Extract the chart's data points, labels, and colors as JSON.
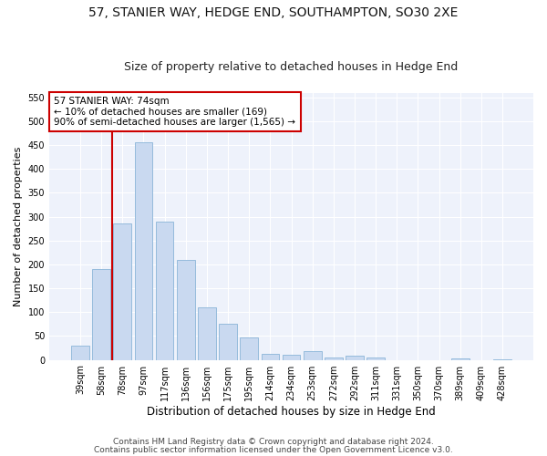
{
  "title": "57, STANIER WAY, HEDGE END, SOUTHAMPTON, SO30 2XE",
  "subtitle": "Size of property relative to detached houses in Hedge End",
  "xlabel": "Distribution of detached houses by size in Hedge End",
  "ylabel": "Number of detached properties",
  "categories": [
    "39sqm",
    "58sqm",
    "78sqm",
    "97sqm",
    "117sqm",
    "136sqm",
    "156sqm",
    "175sqm",
    "195sqm",
    "214sqm",
    "234sqm",
    "253sqm",
    "272sqm",
    "292sqm",
    "311sqm",
    "331sqm",
    "350sqm",
    "370sqm",
    "389sqm",
    "409sqm",
    "428sqm"
  ],
  "values": [
    30,
    190,
    285,
    455,
    290,
    210,
    110,
    75,
    47,
    12,
    10,
    18,
    5,
    8,
    5,
    0,
    0,
    0,
    3,
    0,
    2
  ],
  "bar_color": "#c9d9f0",
  "bar_edge_color": "#8ab4d8",
  "vline_color": "#cc0000",
  "annotation_text": "57 STANIER WAY: 74sqm\n← 10% of detached houses are smaller (169)\n90% of semi-detached houses are larger (1,565) →",
  "annotation_box_color": "white",
  "annotation_box_edge_color": "#cc0000",
  "ylim": [
    0,
    560
  ],
  "yticks": [
    0,
    50,
    100,
    150,
    200,
    250,
    300,
    350,
    400,
    450,
    500,
    550
  ],
  "background_color": "#eef2fb",
  "grid_color": "white",
  "footer1": "Contains HM Land Registry data © Crown copyright and database right 2024.",
  "footer2": "Contains public sector information licensed under the Open Government Licence v3.0.",
  "title_fontsize": 10,
  "subtitle_fontsize": 9,
  "xlabel_fontsize": 8.5,
  "ylabel_fontsize": 8,
  "tick_fontsize": 7,
  "footer_fontsize": 6.5,
  "annot_fontsize": 7.5
}
